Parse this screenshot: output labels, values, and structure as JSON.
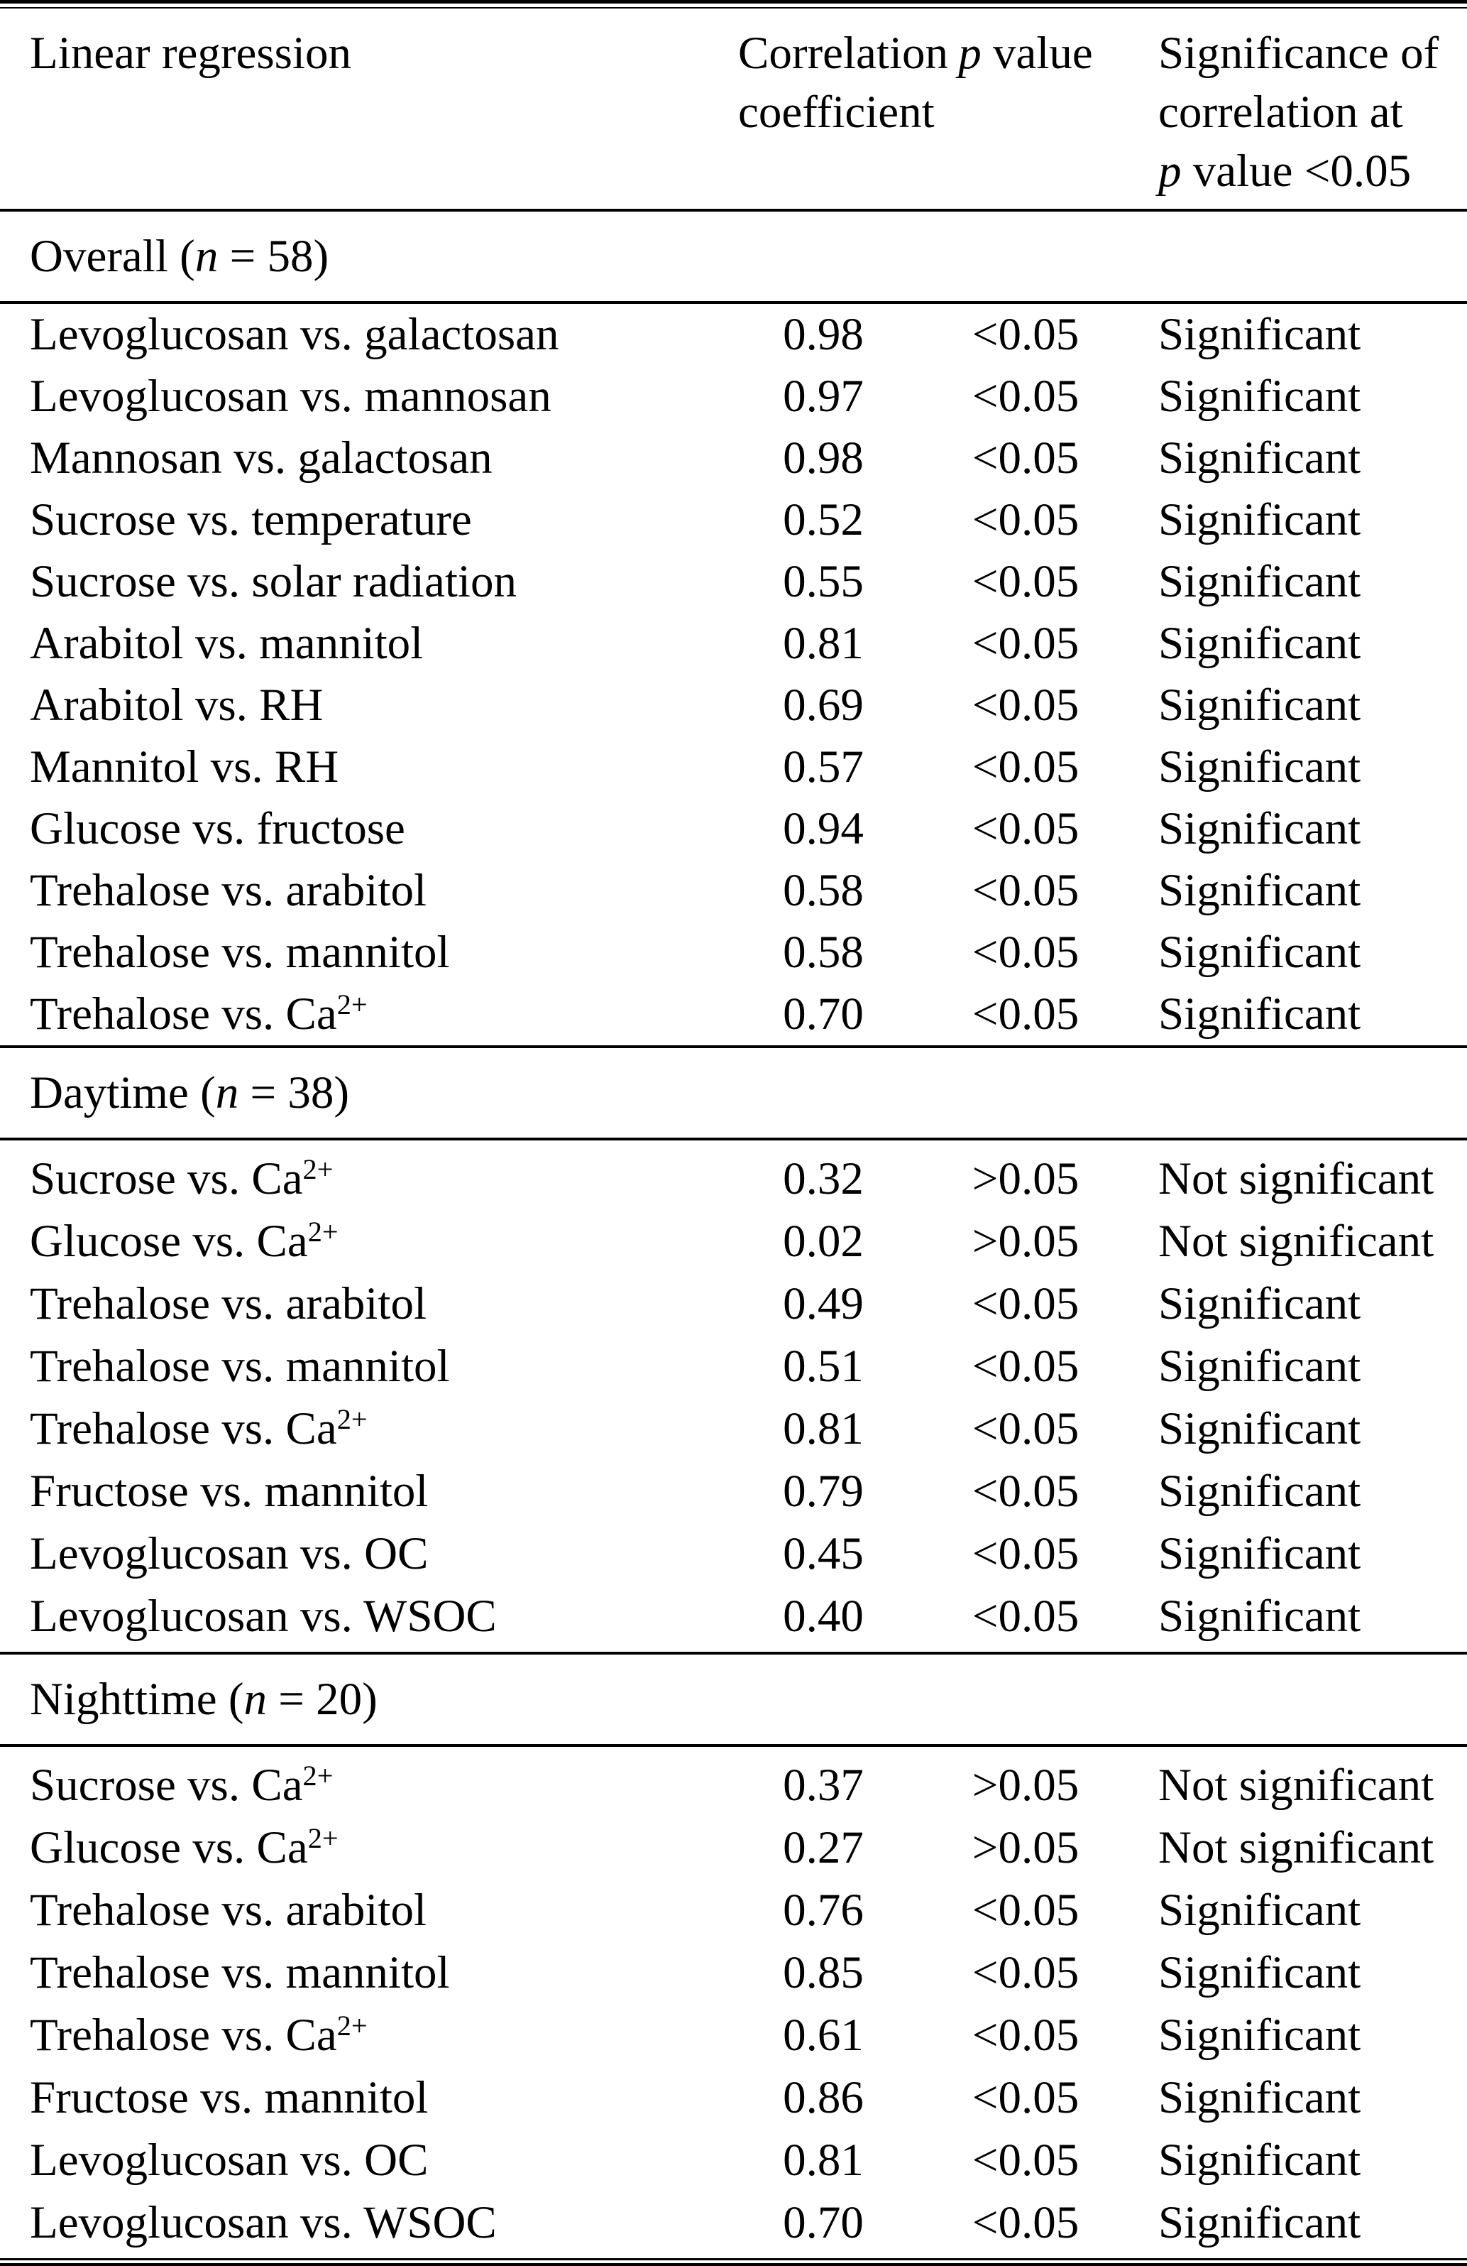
{
  "table": {
    "columns": [
      {
        "id": "linear-regression",
        "label": "Linear regression"
      },
      {
        "id": "correlation-coefficient",
        "label": "Correlation\ncoefficient"
      },
      {
        "id": "p-value",
        "label": "*p* value"
      },
      {
        "id": "significance",
        "label": "Significance of\ncorrelation at\n*p* value <0.05"
      }
    ],
    "sections": [
      {
        "title": "Overall (*n* = 58)",
        "rows": [
          [
            "Levoglucosan vs. galactosan",
            "0.98",
            "<0.05",
            "Significant"
          ],
          [
            "Levoglucosan vs. mannosan",
            "0.97",
            "<0.05",
            "Significant"
          ],
          [
            "Mannosan vs. galactosan",
            "0.98",
            "<0.05",
            "Significant"
          ],
          [
            "Sucrose vs. temperature",
            "0.52",
            "<0.05",
            "Significant"
          ],
          [
            "Sucrose vs. solar radiation",
            "0.55",
            "<0.05",
            "Significant"
          ],
          [
            "Arabitol vs. mannitol",
            "0.81",
            "<0.05",
            "Significant"
          ],
          [
            "Arabitol vs. RH",
            "0.69",
            "<0.05",
            "Significant"
          ],
          [
            "Mannitol vs. RH",
            "0.57",
            "<0.05",
            "Significant"
          ],
          [
            "Glucose vs. fructose",
            "0.94",
            "<0.05",
            "Significant"
          ],
          [
            "Trehalose vs. arabitol",
            "0.58",
            "<0.05",
            "Significant"
          ],
          [
            "Trehalose vs. mannitol",
            "0.58",
            "<0.05",
            "Significant"
          ],
          [
            "Trehalose vs. Ca^{2+}",
            "0.70",
            "<0.05",
            "Significant"
          ]
        ]
      },
      {
        "title": "Daytime (*n* = 38)",
        "rows": [
          [
            "Sucrose vs. Ca^{2+}",
            "0.32",
            ">0.05",
            "Not significant"
          ],
          [
            "Glucose vs. Ca^{2+}",
            "0.02",
            ">0.05",
            "Not significant"
          ],
          [
            "Trehalose vs. arabitol",
            "0.49",
            "<0.05",
            "Significant"
          ],
          [
            "Trehalose vs. mannitol",
            "0.51",
            "<0.05",
            "Significant"
          ],
          [
            "Trehalose vs. Ca^{2+}",
            "0.81",
            "<0.05",
            "Significant"
          ],
          [
            "Fructose vs. mannitol",
            "0.79",
            "<0.05",
            "Significant"
          ],
          [
            "Levoglucosan vs. OC",
            "0.45",
            "<0.05",
            "Significant"
          ],
          [
            "Levoglucosan vs. WSOC",
            "0.40",
            "<0.05",
            "Significant"
          ]
        ]
      },
      {
        "title": "Nighttime (*n* = 20)",
        "rows": [
          [
            "Sucrose vs. Ca^{2+}",
            "0.37",
            ">0.05",
            "Not significant"
          ],
          [
            "Glucose vs. Ca^{2+}",
            "0.27",
            ">0.05",
            "Not significant"
          ],
          [
            "Trehalose vs. arabitol",
            "0.76",
            "<0.05",
            "Significant"
          ],
          [
            "Trehalose vs. mannitol",
            "0.85",
            "<0.05",
            "Significant"
          ],
          [
            "Trehalose vs. Ca^{2+}",
            "0.61",
            "<0.05",
            "Significant"
          ],
          [
            "Fructose vs. mannitol",
            "0.86",
            "<0.05",
            "Significant"
          ],
          [
            "Levoglucosan vs. OC",
            "0.81",
            "<0.05",
            "Significant"
          ],
          [
            "Levoglucosan vs. WSOC",
            "0.70",
            "<0.05",
            "Significant"
          ]
        ]
      }
    ]
  }
}
